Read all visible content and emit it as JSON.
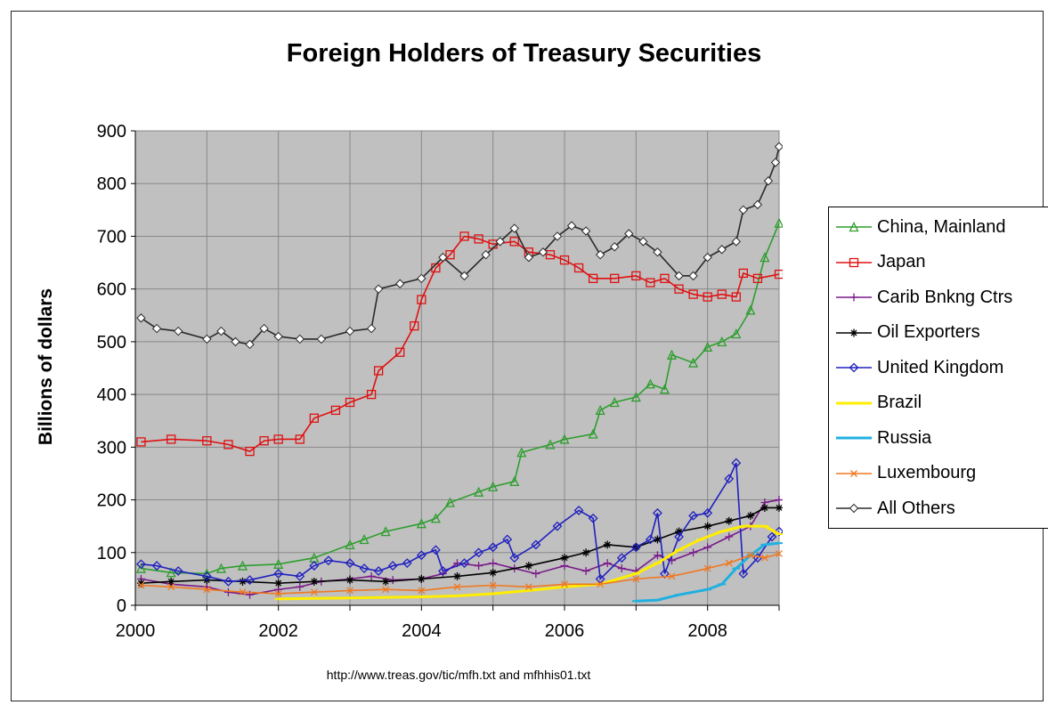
{
  "chart_data": {
    "type": "line",
    "title": "Foreign Holders of Treasury Securities",
    "xlabel": "",
    "ylabel": "Billions of dollars",
    "source_note": "http://www.treas.gov/tic/mfh.txt and mfhhis01.txt",
    "xlim": [
      2000,
      2009
    ],
    "ylim": [
      0,
      900
    ],
    "x_ticks": [
      2000,
      2002,
      2004,
      2006,
      2008
    ],
    "x_tick_labels": [
      "2000",
      "2002",
      "2004",
      "2006",
      "2008"
    ],
    "y_ticks": [
      0,
      100,
      200,
      300,
      400,
      500,
      600,
      700,
      800,
      900
    ],
    "y_tick_labels": [
      "0",
      "100",
      "200",
      "300",
      "400",
      "500",
      "600",
      "700",
      "800",
      "900"
    ],
    "grid": true,
    "legend_position": "right",
    "series": [
      {
        "name": "China, Mainland",
        "color": "#2e9e2e",
        "marker": "triangle",
        "points": [
          [
            2000.08,
            70
          ],
          [
            2000.5,
            62
          ],
          [
            2001.0,
            60
          ],
          [
            2001.2,
            70
          ],
          [
            2001.5,
            75
          ],
          [
            2002.0,
            78
          ],
          [
            2002.5,
            90
          ],
          [
            2003.0,
            115
          ],
          [
            2003.2,
            125
          ],
          [
            2003.5,
            140
          ],
          [
            2004.0,
            155
          ],
          [
            2004.2,
            165
          ],
          [
            2004.4,
            195
          ],
          [
            2004.8,
            215
          ],
          [
            2005.0,
            225
          ],
          [
            2005.3,
            235
          ],
          [
            2005.4,
            290
          ],
          [
            2005.8,
            305
          ],
          [
            2006.0,
            315
          ],
          [
            2006.4,
            325
          ],
          [
            2006.5,
            370
          ],
          [
            2006.7,
            385
          ],
          [
            2007.0,
            395
          ],
          [
            2007.2,
            420
          ],
          [
            2007.4,
            410
          ],
          [
            2007.5,
            475
          ],
          [
            2007.8,
            460
          ],
          [
            2008.0,
            490
          ],
          [
            2008.2,
            500
          ],
          [
            2008.4,
            515
          ],
          [
            2008.6,
            560
          ],
          [
            2008.8,
            660
          ],
          [
            2009.0,
            725
          ]
        ]
      },
      {
        "name": "Japan",
        "color": "#e01010",
        "marker": "square",
        "points": [
          [
            2000.08,
            310
          ],
          [
            2000.5,
            315
          ],
          [
            2001.0,
            312
          ],
          [
            2001.3,
            305
          ],
          [
            2001.6,
            292
          ],
          [
            2001.8,
            312
          ],
          [
            2002.0,
            315
          ],
          [
            2002.3,
            315
          ],
          [
            2002.5,
            355
          ],
          [
            2002.8,
            370
          ],
          [
            2003.0,
            385
          ],
          [
            2003.3,
            400
          ],
          [
            2003.4,
            445
          ],
          [
            2003.7,
            480
          ],
          [
            2003.9,
            530
          ],
          [
            2004.0,
            580
          ],
          [
            2004.2,
            640
          ],
          [
            2004.4,
            665
          ],
          [
            2004.6,
            700
          ],
          [
            2004.8,
            695
          ],
          [
            2005.0,
            685
          ],
          [
            2005.3,
            690
          ],
          [
            2005.5,
            670
          ],
          [
            2005.8,
            665
          ],
          [
            2006.0,
            655
          ],
          [
            2006.2,
            640
          ],
          [
            2006.4,
            620
          ],
          [
            2006.7,
            620
          ],
          [
            2007.0,
            625
          ],
          [
            2007.2,
            612
          ],
          [
            2007.4,
            620
          ],
          [
            2007.6,
            600
          ],
          [
            2007.8,
            590
          ],
          [
            2008.0,
            585
          ],
          [
            2008.2,
            590
          ],
          [
            2008.4,
            585
          ],
          [
            2008.5,
            630
          ],
          [
            2008.7,
            620
          ],
          [
            2009.0,
            628
          ]
        ]
      },
      {
        "name": "Carib Bnkng Ctrs",
        "color": "#7a1a8a",
        "marker": "plus",
        "points": [
          [
            2000.08,
            50
          ],
          [
            2000.5,
            40
          ],
          [
            2001.0,
            35
          ],
          [
            2001.3,
            25
          ],
          [
            2001.6,
            20
          ],
          [
            2002.0,
            30
          ],
          [
            2002.3,
            35
          ],
          [
            2002.6,
            45
          ],
          [
            2003.0,
            50
          ],
          [
            2003.3,
            55
          ],
          [
            2003.6,
            48
          ],
          [
            2004.0,
            50
          ],
          [
            2004.3,
            60
          ],
          [
            2004.5,
            80
          ],
          [
            2004.8,
            75
          ],
          [
            2005.0,
            80
          ],
          [
            2005.3,
            70
          ],
          [
            2005.6,
            60
          ],
          [
            2006.0,
            75
          ],
          [
            2006.3,
            65
          ],
          [
            2006.6,
            80
          ],
          [
            2006.8,
            70
          ],
          [
            2007.0,
            65
          ],
          [
            2007.3,
            95
          ],
          [
            2007.5,
            85
          ],
          [
            2007.8,
            100
          ],
          [
            2008.0,
            110
          ],
          [
            2008.3,
            130
          ],
          [
            2008.6,
            150
          ],
          [
            2008.8,
            195
          ],
          [
            2009.0,
            200
          ]
        ]
      },
      {
        "name": "Oil Exporters",
        "color": "#000000",
        "marker": "star",
        "points": [
          [
            2000.08,
            42
          ],
          [
            2000.5,
            45
          ],
          [
            2001.0,
            48
          ],
          [
            2001.5,
            45
          ],
          [
            2002.0,
            42
          ],
          [
            2002.5,
            45
          ],
          [
            2003.0,
            48
          ],
          [
            2003.5,
            45
          ],
          [
            2004.0,
            50
          ],
          [
            2004.5,
            55
          ],
          [
            2005.0,
            62
          ],
          [
            2005.5,
            75
          ],
          [
            2006.0,
            90
          ],
          [
            2006.3,
            100
          ],
          [
            2006.6,
            115
          ],
          [
            2007.0,
            110
          ],
          [
            2007.3,
            125
          ],
          [
            2007.6,
            140
          ],
          [
            2008.0,
            150
          ],
          [
            2008.3,
            160
          ],
          [
            2008.6,
            170
          ],
          [
            2008.8,
            185
          ],
          [
            2009.0,
            185
          ]
        ]
      },
      {
        "name": "United Kingdom",
        "color": "#2020c0",
        "marker": "diamond",
        "points": [
          [
            2000.08,
            78
          ],
          [
            2000.3,
            75
          ],
          [
            2000.6,
            65
          ],
          [
            2001.0,
            55
          ],
          [
            2001.3,
            45
          ],
          [
            2001.6,
            48
          ],
          [
            2002.0,
            60
          ],
          [
            2002.3,
            55
          ],
          [
            2002.5,
            75
          ],
          [
            2002.7,
            85
          ],
          [
            2003.0,
            80
          ],
          [
            2003.2,
            70
          ],
          [
            2003.4,
            65
          ],
          [
            2003.6,
            75
          ],
          [
            2003.8,
            80
          ],
          [
            2004.0,
            95
          ],
          [
            2004.2,
            105
          ],
          [
            2004.3,
            65
          ],
          [
            2004.6,
            80
          ],
          [
            2004.8,
            100
          ],
          [
            2005.0,
            110
          ],
          [
            2005.2,
            125
          ],
          [
            2005.3,
            90
          ],
          [
            2005.6,
            115
          ],
          [
            2005.9,
            150
          ],
          [
            2006.2,
            180
          ],
          [
            2006.4,
            165
          ],
          [
            2006.5,
            50
          ],
          [
            2006.8,
            90
          ],
          [
            2007.0,
            110
          ],
          [
            2007.2,
            125
          ],
          [
            2007.3,
            175
          ],
          [
            2007.4,
            60
          ],
          [
            2007.6,
            130
          ],
          [
            2007.8,
            170
          ],
          [
            2008.0,
            175
          ],
          [
            2008.3,
            240
          ],
          [
            2008.4,
            270
          ],
          [
            2008.5,
            60
          ],
          [
            2008.7,
            90
          ],
          [
            2008.9,
            130
          ],
          [
            2009.0,
            140
          ]
        ]
      },
      {
        "name": "Brazil",
        "color": "#ffee00",
        "marker": "dash",
        "points": [
          [
            2002.0,
            12
          ],
          [
            2002.5,
            13
          ],
          [
            2003.0,
            14
          ],
          [
            2003.5,
            15
          ],
          [
            2004.0,
            16
          ],
          [
            2004.5,
            18
          ],
          [
            2005.0,
            22
          ],
          [
            2005.5,
            28
          ],
          [
            2006.0,
            35
          ],
          [
            2006.5,
            40
          ],
          [
            2007.0,
            60
          ],
          [
            2007.3,
            80
          ],
          [
            2007.6,
            105
          ],
          [
            2007.9,
            125
          ],
          [
            2008.2,
            140
          ],
          [
            2008.5,
            150
          ],
          [
            2008.8,
            150
          ],
          [
            2009.0,
            135
          ]
        ]
      },
      {
        "name": "Russia",
        "color": "#20b0e0",
        "marker": "dash",
        "points": [
          [
            2007.0,
            8
          ],
          [
            2007.3,
            10
          ],
          [
            2007.6,
            20
          ],
          [
            2008.0,
            30
          ],
          [
            2008.2,
            40
          ],
          [
            2008.4,
            70
          ],
          [
            2008.6,
            95
          ],
          [
            2008.8,
            115
          ],
          [
            2009.0,
            118
          ]
        ]
      },
      {
        "name": "Luxembourg",
        "color": "#f07820",
        "marker": "x",
        "points": [
          [
            2000.08,
            38
          ],
          [
            2000.5,
            35
          ],
          [
            2001.0,
            30
          ],
          [
            2001.5,
            25
          ],
          [
            2002.0,
            22
          ],
          [
            2002.5,
            25
          ],
          [
            2003.0,
            28
          ],
          [
            2003.5,
            30
          ],
          [
            2004.0,
            28
          ],
          [
            2004.5,
            35
          ],
          [
            2005.0,
            38
          ],
          [
            2005.5,
            35
          ],
          [
            2006.0,
            40
          ],
          [
            2006.5,
            40
          ],
          [
            2007.0,
            50
          ],
          [
            2007.5,
            55
          ],
          [
            2008.0,
            70
          ],
          [
            2008.3,
            80
          ],
          [
            2008.6,
            95
          ],
          [
            2008.8,
            90
          ],
          [
            2009.0,
            98
          ]
        ]
      },
      {
        "name": "All Others",
        "color": "#2a2a2a",
        "marker": "diamond-open",
        "points": [
          [
            2000.08,
            545
          ],
          [
            2000.3,
            525
          ],
          [
            2000.6,
            520
          ],
          [
            2001.0,
            505
          ],
          [
            2001.2,
            520
          ],
          [
            2001.4,
            500
          ],
          [
            2001.6,
            495
          ],
          [
            2001.8,
            525
          ],
          [
            2002.0,
            510
          ],
          [
            2002.3,
            505
          ],
          [
            2002.6,
            505
          ],
          [
            2003.0,
            520
          ],
          [
            2003.3,
            525
          ],
          [
            2003.4,
            600
          ],
          [
            2003.7,
            610
          ],
          [
            2004.0,
            620
          ],
          [
            2004.3,
            660
          ],
          [
            2004.6,
            625
          ],
          [
            2004.9,
            665
          ],
          [
            2005.1,
            690
          ],
          [
            2005.3,
            715
          ],
          [
            2005.5,
            660
          ],
          [
            2005.7,
            670
          ],
          [
            2005.9,
            700
          ],
          [
            2006.1,
            720
          ],
          [
            2006.3,
            710
          ],
          [
            2006.5,
            665
          ],
          [
            2006.7,
            680
          ],
          [
            2006.9,
            705
          ],
          [
            2007.1,
            690
          ],
          [
            2007.3,
            670
          ],
          [
            2007.6,
            625
          ],
          [
            2007.8,
            625
          ],
          [
            2008.0,
            660
          ],
          [
            2008.2,
            675
          ],
          [
            2008.4,
            690
          ],
          [
            2008.5,
            750
          ],
          [
            2008.7,
            760
          ],
          [
            2008.85,
            805
          ],
          [
            2008.95,
            840
          ],
          [
            2009.0,
            870
          ]
        ]
      }
    ]
  }
}
